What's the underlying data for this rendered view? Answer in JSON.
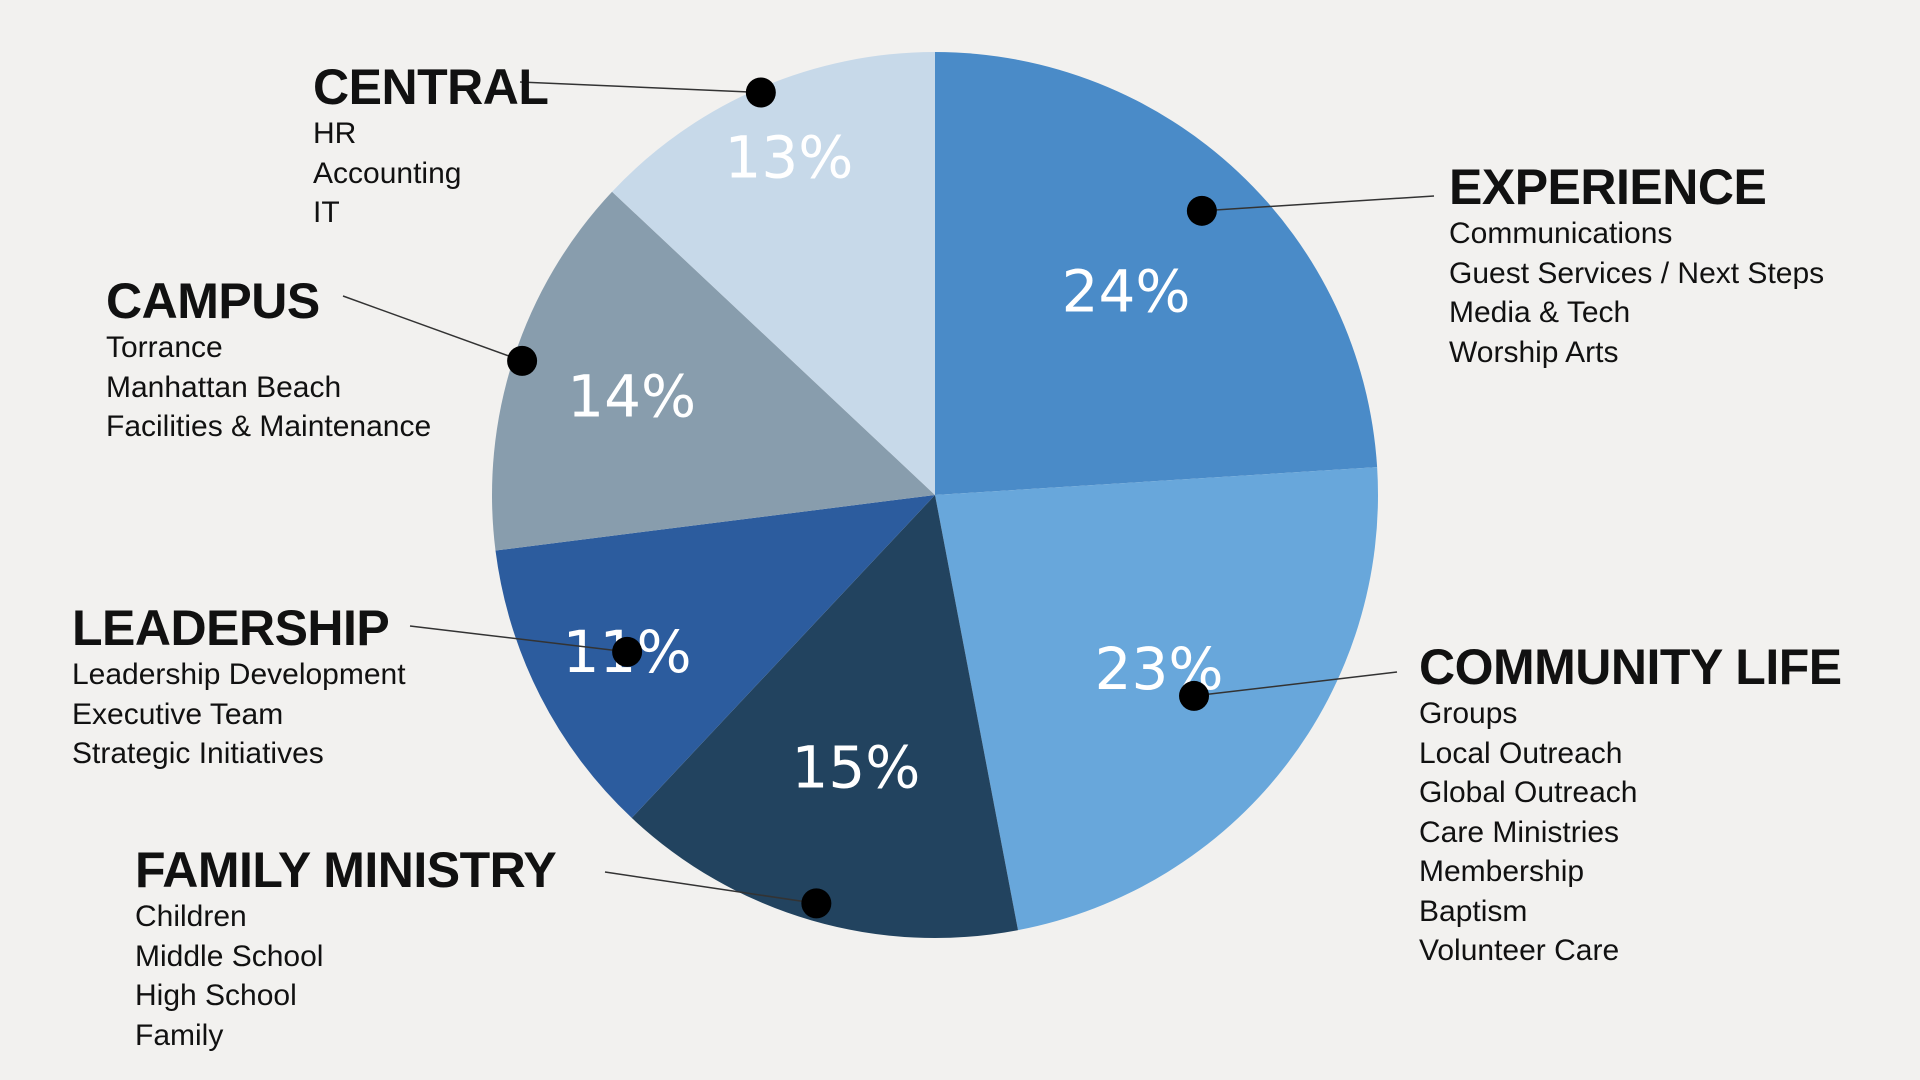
{
  "chart_data": {
    "type": "pie",
    "slices": [
      {
        "name": "EXPERIENCE",
        "value": 24,
        "label": "24%",
        "color": "#4a8bc8",
        "items": [
          "Communications",
          "Guest Services / Next Steps",
          "Media & Tech",
          "Worship Arts"
        ]
      },
      {
        "name": "COMMUNITY LIFE",
        "value": 23,
        "label": "23%",
        "color": "#68a7db",
        "items": [
          "Groups",
          "Local Outreach",
          "Global Outreach",
          "Care Ministries",
          "Membership",
          "Baptism",
          "Volunteer Care"
        ]
      },
      {
        "name": "FAMILY MINISTRY",
        "value": 15,
        "label": "15%",
        "color": "#22435f",
        "items": [
          "Children",
          "Middle School",
          "High School",
          "Family"
        ]
      },
      {
        "name": "LEADERSHIP",
        "value": 11,
        "label": "11%",
        "color": "#2c5c9e",
        "items": [
          "Leadership Development",
          "Executive Team",
          "Strategic Initiatives"
        ]
      },
      {
        "name": "CAMPUS",
        "value": 14,
        "label": "14%",
        "color": "#889dad",
        "items": [
          "Torrance",
          "Manhattan Beach",
          "Facilities & Maintenance"
        ]
      },
      {
        "name": "CENTRAL",
        "value": 13,
        "label": "13%",
        "color": "#c7d9e9",
        "items": [
          "HR",
          "Accounting",
          "IT"
        ]
      }
    ],
    "legend": "callouts"
  }
}
